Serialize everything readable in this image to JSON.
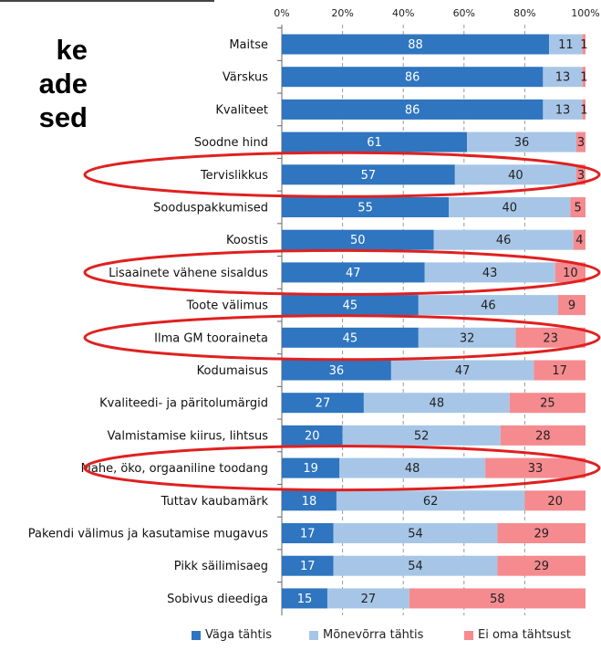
{
  "heading": {
    "lines": [
      "ke",
      "ade",
      "sed"
    ]
  },
  "colors": {
    "very_important": "#2f75c0",
    "somewhat_important": "#a7c6e7",
    "not_important": "#f58b8f",
    "highlight_ellipse": "#e02020"
  },
  "chart_data": {
    "type": "bar",
    "orientation": "horizontal",
    "stacked": true,
    "x_ticks": [
      "0%",
      "20%",
      "40%",
      "60%",
      "80%",
      "100%"
    ],
    "xlim": [
      0,
      100
    ],
    "grid": true,
    "legend_position": "bottom",
    "categories": [
      "Maitse",
      "Värskus",
      "Kvaliteet",
      "Soodne hind",
      "Tervislikkus",
      "Sooduspakkumised",
      "Koostis",
      "Lisaainete vähene sisaldus",
      "Toote välimus",
      "Ilma GM tooraineta",
      "Kodumaisus",
      "Kvaliteedi- ja päritolumärgid",
      "Valmistamise kiirus, lihtsus",
      "Mahe, öko, orgaaniline toodang",
      "Tuttav kaubamärk",
      "Pakendi välimus ja kasutamise mugavus",
      "Pikk säilimisaeg",
      "Sobivus dieediga"
    ],
    "series": [
      {
        "name": "Väga tähtis",
        "values": [
          88,
          86,
          86,
          61,
          57,
          55,
          50,
          47,
          45,
          45,
          36,
          27,
          20,
          19,
          18,
          17,
          17,
          15
        ]
      },
      {
        "name": "Mõnevõrra tähtis",
        "values": [
          11,
          13,
          13,
          36,
          40,
          40,
          46,
          43,
          46,
          32,
          47,
          48,
          52,
          48,
          62,
          54,
          54,
          27
        ]
      },
      {
        "name": "Ei oma tähtsust",
        "values": [
          1,
          1,
          1,
          3,
          3,
          5,
          4,
          10,
          9,
          23,
          17,
          25,
          28,
          33,
          20,
          29,
          29,
          58
        ]
      }
    ],
    "highlighted_categories": [
      "Tervislikkus",
      "Lisaainete vähene sisaldus",
      "Ilma GM tooraineta",
      "Mahe, öko, orgaaniline toodang"
    ]
  }
}
